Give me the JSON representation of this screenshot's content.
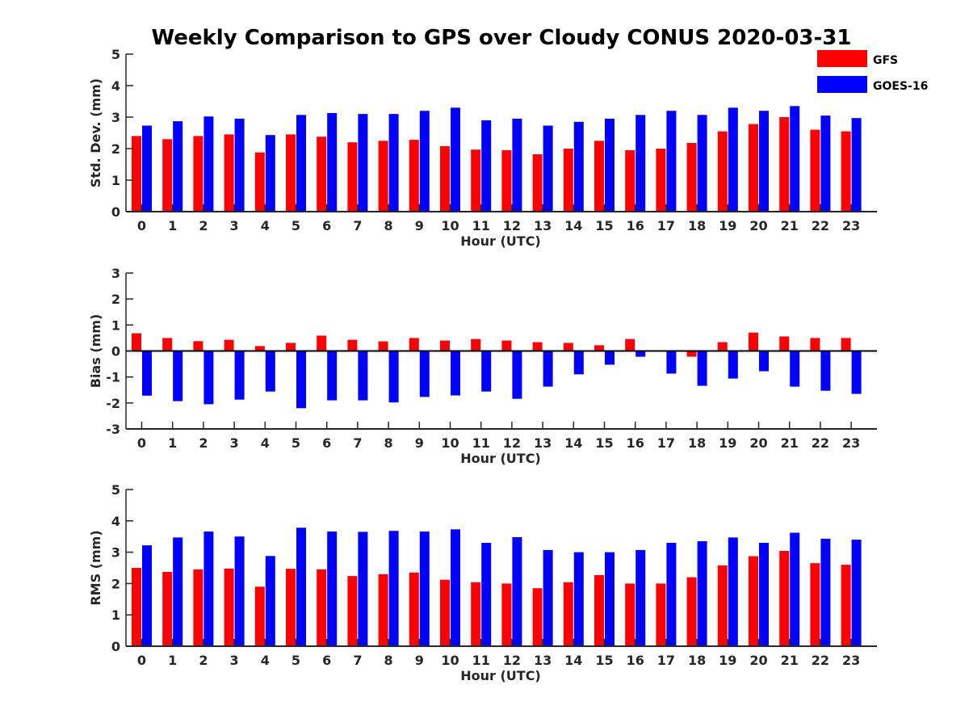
{
  "figure": {
    "title": "Weekly Comparison to GPS over Cloudy CONUS 2020-03-31"
  },
  "legend": {
    "placement": "top-right",
    "items": [
      {
        "label": "GFS",
        "color": "#ff0000"
      },
      {
        "label": "GOES-16",
        "color": "#0000ff"
      }
    ]
  },
  "chart_data": [
    {
      "type": "bar",
      "xlabel": "Hour (UTC)",
      "ylabel": "Std. Dev. (mm)",
      "ylim": [
        0,
        5
      ],
      "yticks": [
        0,
        1,
        2,
        3,
        4,
        5
      ],
      "grid": false,
      "categories": [
        "0",
        "1",
        "2",
        "3",
        "4",
        "5",
        "6",
        "7",
        "8",
        "9",
        "10",
        "11",
        "12",
        "13",
        "14",
        "15",
        "16",
        "17",
        "18",
        "19",
        "20",
        "21",
        "22",
        "23"
      ],
      "series": [
        {
          "name": "GFS",
          "color": "#ff0000",
          "values": [
            2.4,
            2.3,
            2.4,
            2.45,
            1.88,
            2.45,
            2.38,
            2.2,
            2.25,
            2.28,
            2.08,
            1.97,
            1.95,
            1.82,
            2.0,
            2.25,
            1.95,
            2.0,
            2.18,
            2.55,
            2.78,
            3.0,
            2.6,
            2.55
          ]
        },
        {
          "name": "GOES-16",
          "color": "#0000ff",
          "values": [
            2.73,
            2.87,
            3.02,
            2.95,
            2.43,
            3.07,
            3.13,
            3.1,
            3.1,
            3.2,
            3.3,
            2.9,
            2.95,
            2.73,
            2.85,
            2.95,
            3.07,
            3.2,
            3.07,
            3.3,
            3.2,
            3.35,
            3.05,
            2.97
          ]
        }
      ]
    },
    {
      "type": "bar",
      "xlabel": "Hour (UTC)",
      "ylabel": "Bias (mm)",
      "ylim": [
        -3,
        3
      ],
      "yticks": [
        -3,
        -2,
        -1,
        0,
        1,
        2,
        3
      ],
      "grid": false,
      "categories": [
        "0",
        "1",
        "2",
        "3",
        "4",
        "5",
        "6",
        "7",
        "8",
        "9",
        "10",
        "11",
        "12",
        "13",
        "14",
        "15",
        "16",
        "17",
        "18",
        "19",
        "20",
        "21",
        "22",
        "23"
      ],
      "series": [
        {
          "name": "GFS",
          "color": "#ff0000",
          "values": [
            0.68,
            0.5,
            0.38,
            0.43,
            0.19,
            0.31,
            0.59,
            0.43,
            0.37,
            0.5,
            0.4,
            0.46,
            0.4,
            0.34,
            0.31,
            0.22,
            0.46,
            -0.03,
            -0.22,
            0.34,
            0.71,
            0.56,
            0.5,
            0.5
          ]
        },
        {
          "name": "GOES-16",
          "color": "#0000ff",
          "values": [
            -1.72,
            -1.93,
            -2.05,
            -1.87,
            -1.56,
            -2.2,
            -1.9,
            -1.9,
            -1.98,
            -1.77,
            -1.71,
            -1.56,
            -1.84,
            -1.37,
            -0.9,
            -0.53,
            -0.22,
            -0.87,
            -1.34,
            -1.06,
            -0.78,
            -1.37,
            -1.53,
            -1.65
          ]
        }
      ]
    },
    {
      "type": "bar",
      "xlabel": "Hour (UTC)",
      "ylabel": "RMS (mm)",
      "ylim": [
        0,
        5
      ],
      "yticks": [
        0,
        1,
        2,
        3,
        4,
        5
      ],
      "grid": false,
      "categories": [
        "0",
        "1",
        "2",
        "3",
        "4",
        "5",
        "6",
        "7",
        "8",
        "9",
        "10",
        "11",
        "12",
        "13",
        "14",
        "15",
        "16",
        "17",
        "18",
        "19",
        "20",
        "21",
        "22",
        "23"
      ],
      "series": [
        {
          "name": "GFS",
          "color": "#ff0000",
          "values": [
            2.5,
            2.37,
            2.45,
            2.48,
            1.9,
            2.47,
            2.45,
            2.24,
            2.3,
            2.35,
            2.12,
            2.04,
            2.0,
            1.85,
            2.04,
            2.27,
            2.0,
            2.0,
            2.2,
            2.58,
            2.87,
            3.04,
            2.65,
            2.6
          ]
        },
        {
          "name": "GOES-16",
          "color": "#0000ff",
          "values": [
            3.22,
            3.47,
            3.66,
            3.5,
            2.88,
            3.78,
            3.66,
            3.65,
            3.68,
            3.66,
            3.73,
            3.3,
            3.48,
            3.07,
            3.0,
            3.0,
            3.07,
            3.3,
            3.35,
            3.47,
            3.3,
            3.62,
            3.43,
            3.4
          ]
        }
      ]
    }
  ]
}
